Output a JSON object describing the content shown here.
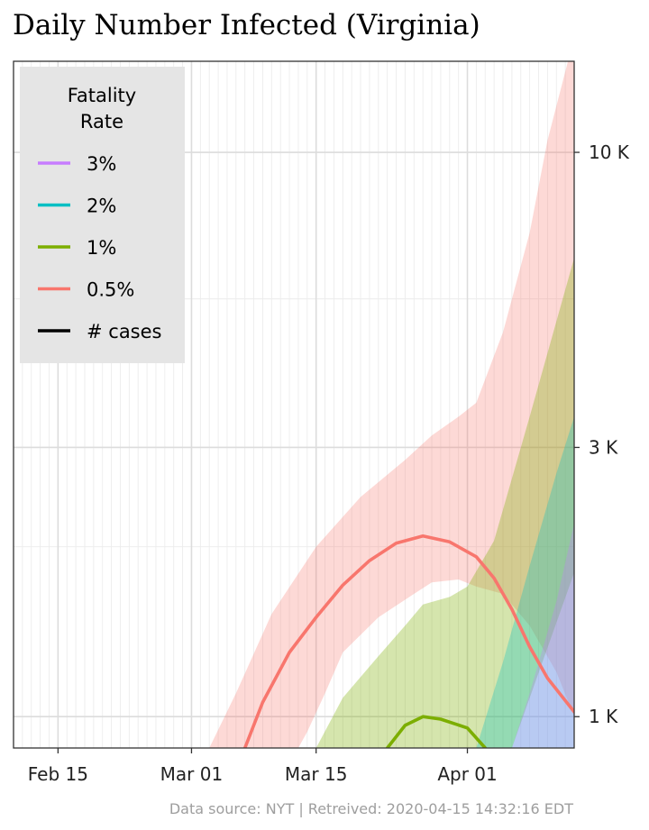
{
  "chart_data": {
    "type": "area",
    "title": "Daily Number Infected (Virginia)",
    "xlabel": "",
    "ylabel": "",
    "x_start": "2020-02-10",
    "x_end": "2020-04-13",
    "y_scale": "log",
    "ylim": [
      880,
      14500
    ],
    "grid": true,
    "x_ticks": [
      {
        "date": "2020-02-15",
        "label": "Feb 15"
      },
      {
        "date": "2020-03-01",
        "label": "Mar 01"
      },
      {
        "date": "2020-03-15",
        "label": "Mar 15"
      },
      {
        "date": "2020-04-01",
        "label": "Apr 01"
      }
    ],
    "y_ticks": [
      {
        "value": 1000,
        "label": "1 K"
      },
      {
        "value": 3000,
        "label": "3 K"
      },
      {
        "value": 10000,
        "label": "10 K"
      }
    ],
    "y_minor_ticks": [
      2000,
      5500
    ],
    "legend": {
      "title": "Fatality\nRate",
      "position": "top-left",
      "entries": [
        {
          "label": "3%",
          "color": "#c77cff"
        },
        {
          "label": "2%",
          "color": "#00bfc4"
        },
        {
          "label": "1%",
          "color": "#7cae00"
        },
        {
          "label": "0.5%",
          "color": "#f8766d"
        },
        {
          "label": "# cases",
          "color": "#000000"
        }
      ]
    },
    "bands": [
      {
        "name": "0.5%",
        "color": "#f8766d",
        "opacity": 0.28,
        "upper": [
          [
            "2020-03-03",
            880
          ],
          [
            "2020-03-06",
            1100
          ],
          [
            "2020-03-10",
            1520
          ],
          [
            "2020-03-15",
            2000
          ],
          [
            "2020-03-20",
            2450
          ],
          [
            "2020-03-25",
            2850
          ],
          [
            "2020-03-28",
            3150
          ],
          [
            "2020-03-31",
            3400
          ],
          [
            "2020-04-02",
            3600
          ],
          [
            "2020-04-05",
            4800
          ],
          [
            "2020-04-08",
            7200
          ],
          [
            "2020-04-10",
            10500
          ],
          [
            "2020-04-13",
            16000
          ]
        ],
        "lower": [
          [
            "2020-04-13",
            1000
          ],
          [
            "2020-04-11",
            1200
          ],
          [
            "2020-04-08",
            1450
          ],
          [
            "2020-04-05",
            1650
          ],
          [
            "2020-04-02",
            1700
          ],
          [
            "2020-03-31",
            1750
          ],
          [
            "2020-03-28",
            1730
          ],
          [
            "2020-03-26",
            1650
          ],
          [
            "2020-03-22",
            1500
          ],
          [
            "2020-03-18",
            1300
          ],
          [
            "2020-03-16",
            1100
          ],
          [
            "2020-03-14",
            940
          ],
          [
            "2020-03-13",
            880
          ]
        ]
      },
      {
        "name": "1%",
        "color": "#7cae00",
        "opacity": 0.32,
        "upper": [
          [
            "2020-03-15",
            880
          ],
          [
            "2020-03-18",
            1080
          ],
          [
            "2020-03-22",
            1280
          ],
          [
            "2020-03-25",
            1450
          ],
          [
            "2020-03-27",
            1580
          ],
          [
            "2020-03-30",
            1630
          ],
          [
            "2020-04-01",
            1700
          ],
          [
            "2020-04-04",
            2050
          ],
          [
            "2020-04-08",
            3400
          ],
          [
            "2020-04-13",
            6500
          ]
        ],
        "lower": [
          [
            "2020-04-13",
            1800
          ],
          [
            "2020-04-06",
            880
          ],
          [
            "2020-04-01",
            880
          ]
        ]
      },
      {
        "name": "2%",
        "color": "#00bfc4",
        "opacity": 0.3,
        "upper": [
          [
            "2020-04-02",
            880
          ],
          [
            "2020-04-05",
            1250
          ],
          [
            "2020-04-08",
            1850
          ],
          [
            "2020-04-11",
            2700
          ],
          [
            "2020-04-13",
            3400
          ]
        ],
        "lower": [
          [
            "2020-04-13",
            880
          ],
          [
            "2020-04-06",
            880
          ]
        ]
      },
      {
        "name": "3%",
        "color": "#c77cff",
        "opacity": 0.3,
        "upper": [
          [
            "2020-04-06",
            880
          ],
          [
            "2020-04-08",
            1100
          ],
          [
            "2020-04-11",
            1600
          ],
          [
            "2020-04-13",
            2200
          ]
        ],
        "lower": [
          [
            "2020-04-13",
            880
          ],
          [
            "2020-04-07",
            880
          ]
        ]
      }
    ],
    "series": [
      {
        "name": "0.5%",
        "color": "#f8766d",
        "points": [
          [
            "2020-03-07",
            880
          ],
          [
            "2020-03-09",
            1060
          ],
          [
            "2020-03-12",
            1300
          ],
          [
            "2020-03-15",
            1500
          ],
          [
            "2020-03-18",
            1710
          ],
          [
            "2020-03-21",
            1890
          ],
          [
            "2020-03-24",
            2030
          ],
          [
            "2020-03-27",
            2090
          ],
          [
            "2020-03-30",
            2040
          ],
          [
            "2020-04-02",
            1920
          ],
          [
            "2020-04-04",
            1760
          ],
          [
            "2020-04-06",
            1550
          ],
          [
            "2020-04-08",
            1330
          ],
          [
            "2020-04-10",
            1170
          ],
          [
            "2020-04-13",
            1020
          ]
        ]
      },
      {
        "name": "1%",
        "color": "#7cae00",
        "points": [
          [
            "2020-03-23",
            880
          ],
          [
            "2020-03-25",
            965
          ],
          [
            "2020-03-27",
            1000
          ],
          [
            "2020-03-29",
            990
          ],
          [
            "2020-04-01",
            955
          ],
          [
            "2020-04-03",
            880
          ]
        ]
      }
    ]
  },
  "footnote": "Data source: NYT  |  Retreived: 2020-04-15 14:32:16 EDT"
}
